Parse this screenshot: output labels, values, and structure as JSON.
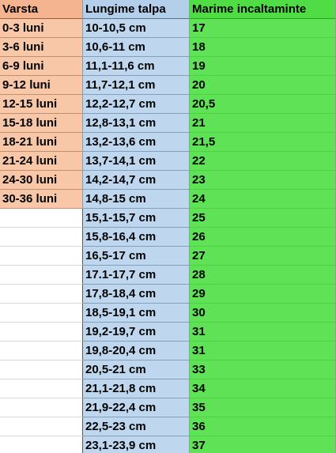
{
  "table": {
    "headers": {
      "age": "Varsta",
      "length": "Lungime talpa",
      "size": "Marime incaltaminte"
    },
    "rows": [
      {
        "age": "0-3 luni",
        "length": "10-10,5 cm",
        "size": "17"
      },
      {
        "age": "3-6 luni",
        "length": "10,6-11 cm",
        "size": "18"
      },
      {
        "age": "6-9 luni",
        "length": "11,1-11,6 cm",
        "size": "19"
      },
      {
        "age": "9-12 luni",
        "length": "11,7-12,1 cm",
        "size": "20"
      },
      {
        "age": "12-15 luni",
        "length": "12,2-12,7 cm",
        "size": "20,5"
      },
      {
        "age": "15-18 luni",
        "length": "12,8-13,1 cm",
        "size": "21"
      },
      {
        "age": "18-21 luni",
        "length": "13,2-13,6 cm",
        "size": "21,5"
      },
      {
        "age": "21-24 luni",
        "length": "13,7-14,1 cm",
        "size": "22"
      },
      {
        "age": "24-30 luni",
        "length": "14,2-14,7 cm",
        "size": "23"
      },
      {
        "age": "30-36 luni",
        "length": "14,8-15 cm",
        "size": "24"
      },
      {
        "age": "",
        "length": "15,1-15,7 cm",
        "size": "25"
      },
      {
        "age": "",
        "length": "15,8-16,4 cm",
        "size": "26"
      },
      {
        "age": "",
        "length": "16,5-17 cm",
        "size": "27"
      },
      {
        "age": "",
        "length": "17.1-17,7 cm",
        "size": "28"
      },
      {
        "age": "",
        "length": "17,8-18,4 cm",
        "size": "29"
      },
      {
        "age": "",
        "length": "18,5-19,1 cm",
        "size": "30"
      },
      {
        "age": "",
        "length": "19,2-19,7 cm",
        "size": "31"
      },
      {
        "age": "",
        "length": "19,8-20,4 cm",
        "size": "31"
      },
      {
        "age": "",
        "length": "20,5-21 cm",
        "size": "33"
      },
      {
        "age": "",
        "length": "21,1-21,8 cm",
        "size": "34"
      },
      {
        "age": "",
        "length": "21,9-22,4 cm",
        "size": "35"
      },
      {
        "age": "",
        "length": "22,5-23 cm",
        "size": "36"
      },
      {
        "age": "",
        "length": "23,1-23,9 cm",
        "size": "37"
      }
    ]
  },
  "colors": {
    "age_fill": "#f7c7a8",
    "length_fill": "#bfd7ee",
    "size_fill": "#5fe255"
  }
}
